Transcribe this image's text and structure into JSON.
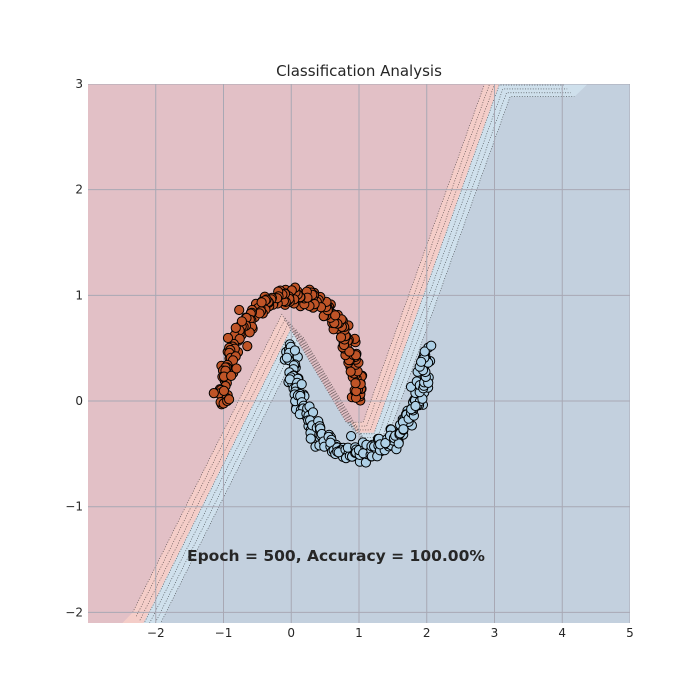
{
  "chart_data": {
    "type": "scatter",
    "title": "Classification Analysis",
    "xlabel": "",
    "ylabel": "",
    "xlim": [
      -3,
      5
    ],
    "ylim": [
      -2.1,
      3
    ],
    "x_ticks": [
      -2,
      -1,
      0,
      1,
      2,
      3,
      4,
      5
    ],
    "x_tick_labels": [
      "−2",
      "−1",
      "0",
      "1",
      "2",
      "3",
      "4",
      "5"
    ],
    "y_ticks": [
      -2,
      -1,
      0,
      1,
      2,
      3
    ],
    "y_tick_labels": [
      "−2",
      "−1",
      "0",
      "1",
      "2",
      "3"
    ],
    "grid": true,
    "annotation": "Epoch = 500, Accuracy = 100.00%",
    "colors": {
      "class0_region": "#e2c0c6",
      "class1_region": "#c3d0de",
      "band_red": "#f4cdc8",
      "band_blue": "#cfe0ec",
      "class0_point": "#bf5427",
      "class1_point": "#aed0e6",
      "grid": "#a8a8b4",
      "point_edge": "#000000"
    },
    "series": [
      {
        "class": 0,
        "shape": "upper-moon",
        "center": [
          0,
          0
        ],
        "radius": 1,
        "theta_range_deg": [
          0,
          180
        ],
        "points": 250
      },
      {
        "class": 1,
        "shape": "lower-moon",
        "center": [
          1,
          0.5
        ],
        "radius": 1,
        "theta_range_deg": [
          180,
          360
        ],
        "points": 250
      }
    ]
  }
}
